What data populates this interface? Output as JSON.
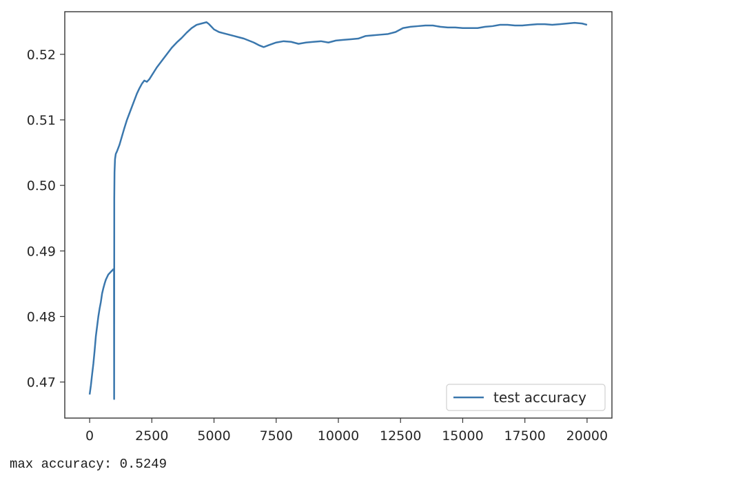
{
  "chart_data": {
    "type": "line",
    "title": "",
    "xlabel": "",
    "ylabel": "",
    "xlim": [
      -1000,
      21000
    ],
    "ylim": [
      0.4645,
      0.5265
    ],
    "x_ticks": [
      0,
      2500,
      5000,
      7500,
      10000,
      12500,
      15000,
      17500,
      20000
    ],
    "x_tick_labels": [
      "0",
      "2500",
      "5000",
      "7500",
      "10000",
      "12500",
      "15000",
      "17500",
      "20000"
    ],
    "y_ticks": [
      0.47,
      0.48,
      0.49,
      0.5,
      0.51,
      0.52
    ],
    "y_tick_labels": [
      "0.47",
      "0.48",
      "0.49",
      "0.50",
      "0.51",
      "0.52"
    ],
    "grid": false,
    "legend_position": "lower-right",
    "series": [
      {
        "name": "test accuracy",
        "color": "#3a77ad",
        "x": [
          0,
          50,
          100,
          150,
          200,
          250,
          300,
          350,
          400,
          450,
          500,
          550,
          600,
          650,
          700,
          750,
          800,
          850,
          900,
          950,
          980,
          985,
          990,
          1000,
          1020,
          1050,
          1100,
          1200,
          1300,
          1400,
          1500,
          1600,
          1700,
          1800,
          1900,
          2000,
          2100,
          2200,
          2300,
          2400,
          2500,
          2700,
          2900,
          3100,
          3300,
          3500,
          3700,
          3900,
          4100,
          4300,
          4500,
          4700,
          4800,
          4900,
          5000,
          5200,
          5400,
          5600,
          5800,
          6000,
          6200,
          6400,
          6600,
          6800,
          7000,
          7200,
          7500,
          7800,
          8100,
          8400,
          8700,
          9000,
          9300,
          9600,
          9900,
          10200,
          10500,
          10800,
          11100,
          11400,
          11700,
          12000,
          12300,
          12600,
          12900,
          13200,
          13500,
          13800,
          14100,
          14400,
          14700,
          15000,
          15300,
          15600,
          15900,
          16200,
          16500,
          16800,
          17100,
          17400,
          17700,
          18000,
          18300,
          18600,
          18900,
          19200,
          19500,
          19800,
          20000
        ],
        "y": [
          0.4681,
          0.4695,
          0.4712,
          0.4728,
          0.4748,
          0.477,
          0.4785,
          0.48,
          0.4812,
          0.4822,
          0.4835,
          0.4843,
          0.485,
          0.4856,
          0.486,
          0.4864,
          0.4866,
          0.4868,
          0.487,
          0.4872,
          0.487,
          0.4674,
          0.498,
          0.502,
          0.504,
          0.5048,
          0.5052,
          0.5062,
          0.5075,
          0.5088,
          0.51,
          0.511,
          0.512,
          0.513,
          0.514,
          0.5148,
          0.5155,
          0.516,
          0.5158,
          0.5162,
          0.5168,
          0.518,
          0.519,
          0.52,
          0.521,
          0.5218,
          0.5225,
          0.5233,
          0.524,
          0.5245,
          0.5247,
          0.5249,
          0.5246,
          0.5242,
          0.5238,
          0.5234,
          0.5232,
          0.523,
          0.5228,
          0.5226,
          0.5224,
          0.5221,
          0.5218,
          0.5214,
          0.5211,
          0.5214,
          0.5218,
          0.522,
          0.5219,
          0.5216,
          0.5218,
          0.5219,
          0.522,
          0.5218,
          0.5221,
          0.5222,
          0.5223,
          0.5224,
          0.5228,
          0.5229,
          0.523,
          0.5231,
          0.5234,
          0.524,
          0.5242,
          0.5243,
          0.5244,
          0.5244,
          0.5242,
          0.5241,
          0.5241,
          0.524,
          0.524,
          0.524,
          0.5242,
          0.5243,
          0.5245,
          0.5245,
          0.5244,
          0.5244,
          0.5245,
          0.5246,
          0.5246,
          0.5245,
          0.5246,
          0.5247,
          0.5248,
          0.5247,
          0.5245
        ]
      }
    ]
  },
  "output": {
    "max_accuracy_text": "max accuracy: 0.5249"
  }
}
